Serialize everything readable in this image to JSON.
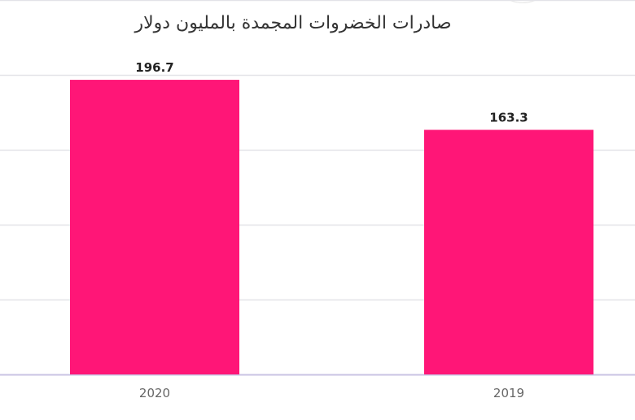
{
  "chart_data": {
    "type": "bar",
    "title": "صادرات الخضروات المجمدة بالمليون دولار",
    "categories": [
      "2020",
      "2019"
    ],
    "values": [
      196.7,
      163.3
    ],
    "data_labels": [
      "196.7",
      "163.3"
    ],
    "xlabel": "",
    "ylabel": "",
    "ylim": [
      0,
      250
    ],
    "grid": true,
    "legend": "none",
    "bar_color": "#ff1677",
    "gridline_color": "#e3e3e8",
    "axis_color": "#c9c3e3"
  }
}
